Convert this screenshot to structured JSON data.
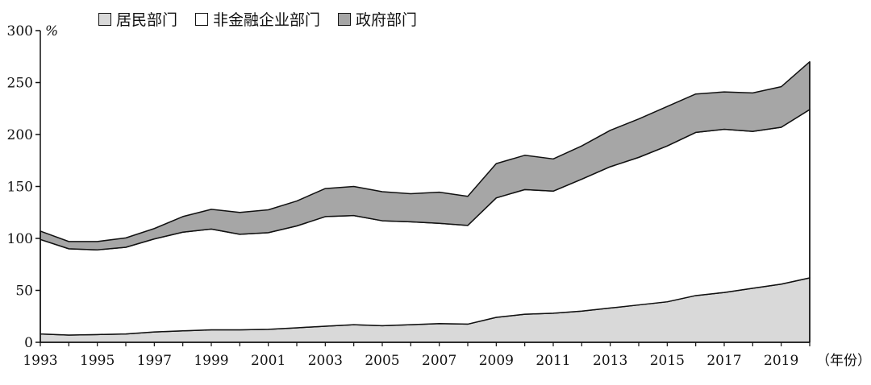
{
  "chart_data": {
    "type": "area",
    "stacked": true,
    "x": [
      1993,
      1994,
      1995,
      1996,
      1997,
      1998,
      1999,
      2000,
      2001,
      2002,
      2003,
      2004,
      2005,
      2006,
      2007,
      2008,
      2009,
      2010,
      2011,
      2012,
      2013,
      2014,
      2015,
      2016,
      2017,
      2018,
      2019,
      2020
    ],
    "series": [
      {
        "name": "居民部门",
        "color": "#d9d9d9",
        "values": [
          8,
          7,
          7.5,
          8,
          10,
          11,
          12,
          12,
          12.5,
          14,
          15.5,
          17,
          16,
          17,
          18,
          17.5,
          24,
          27,
          28,
          30,
          33,
          36,
          39,
          45,
          48,
          52,
          56,
          62
        ]
      },
      {
        "name": "非金融企业部门",
        "color": "#ffffff",
        "values": [
          91,
          83,
          81.5,
          83.5,
          89.5,
          95,
          97,
          92,
          93,
          98,
          105.5,
          105,
          101,
          99,
          96.5,
          95,
          115,
          120,
          117.5,
          127,
          136,
          142,
          150,
          157,
          157,
          151,
          151,
          162
        ]
      },
      {
        "name": "政府部门",
        "color": "#a6a6a6",
        "values": [
          8,
          7,
          8,
          9,
          10,
          15,
          19,
          21,
          22,
          24,
          27,
          28,
          28,
          27,
          30,
          28,
          33,
          33,
          31,
          32,
          35,
          37,
          38,
          37,
          36,
          37,
          39,
          46
        ]
      }
    ],
    "y_ticks": [
      "0",
      "50",
      "100",
      "150",
      "200",
      "250",
      "300"
    ],
    "x_ticks": [
      "1993",
      "1995",
      "1997",
      "1999",
      "2001",
      "2003",
      "2005",
      "2007",
      "2009",
      "2011",
      "2013",
      "2015",
      "2017",
      "2019"
    ],
    "ylim": [
      0,
      300
    ],
    "xlim": [
      1993,
      2020
    ],
    "y_unit": "%",
    "x_unit": "（年份）",
    "legend_position": "top-left",
    "grid": false
  }
}
